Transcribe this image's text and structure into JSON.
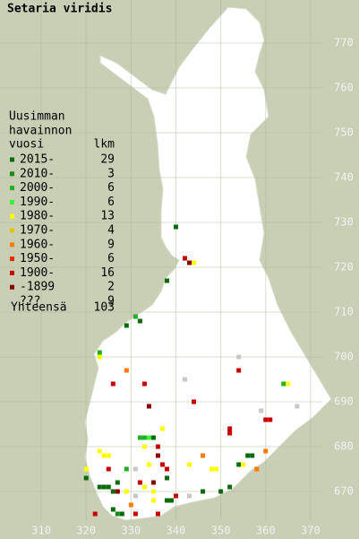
{
  "chart_data": {
    "type": "map",
    "title": "Setaria viridis",
    "legend_heading": [
      "Uusimman",
      "havainnon",
      "vuosi"
    ],
    "count_heading": "lkm",
    "legend": [
      {
        "name": "2015-",
        "count": 29,
        "color": "#0b6b0b"
      },
      {
        "name": "2010-",
        "count": 3,
        "color": "#198a19"
      },
      {
        "name": "2000-",
        "count": 6,
        "color": "#22b022"
      },
      {
        "name": "1990-",
        "count": 6,
        "color": "#3cee3c"
      },
      {
        "name": "1980-",
        "count": 13,
        "color": "#ffff00"
      },
      {
        "name": "1970-",
        "count": 4,
        "color": "#e8c000"
      },
      {
        "name": "1960-",
        "count": 9,
        "color": "#ff7a00"
      },
      {
        "name": "1950-",
        "count": 6,
        "color": "#ee2a00"
      },
      {
        "name": "1900-",
        "count": 16,
        "color": "#c80000"
      },
      {
        "name": "-1899",
        "count": 2,
        "color": "#880000"
      },
      {
        "name": "???",
        "count": 9,
        "color": "#c8c8c8"
      }
    ],
    "total": {
      "label": "Yhteensä",
      "value": 103
    },
    "xlim": [
      300.8,
      380.8
    ],
    "ylim": [
      659.4,
      779.6
    ],
    "xticks": [
      310,
      320,
      330,
      340,
      350,
      360,
      370
    ],
    "yticks": [
      670,
      680,
      690,
      700,
      710,
      720,
      730,
      740,
      750,
      760,
      770
    ],
    "grid": true,
    "points": [
      [
        340,
        729,
        0
      ],
      [
        342,
        722,
        8
      ],
      [
        344,
        721,
        4
      ],
      [
        343,
        721,
        9
      ],
      [
        338,
        717,
        0
      ],
      [
        331,
        709,
        2
      ],
      [
        332,
        708,
        0
      ],
      [
        329,
        707,
        0
      ],
      [
        323,
        701,
        2
      ],
      [
        323,
        700,
        4
      ],
      [
        354,
        700,
        10
      ],
      [
        354,
        697,
        8
      ],
      [
        329,
        697,
        6
      ],
      [
        342,
        695,
        10
      ],
      [
        326,
        694,
        8
      ],
      [
        333,
        694,
        8
      ],
      [
        364,
        694,
        2
      ],
      [
        365,
        694,
        4
      ],
      [
        334,
        689,
        9
      ],
      [
        344,
        690,
        8
      ],
      [
        359,
        688,
        10
      ],
      [
        367,
        689,
        10
      ],
      [
        360,
        686,
        8
      ],
      [
        361,
        686,
        8
      ],
      [
        337,
        684,
        4
      ],
      [
        352,
        684,
        8
      ],
      [
        352,
        683,
        8
      ],
      [
        332,
        682,
        2
      ],
      [
        333,
        682,
        2
      ],
      [
        334,
        682,
        3
      ],
      [
        335,
        682,
        0
      ],
      [
        336,
        680,
        8
      ],
      [
        333,
        680,
        4
      ],
      [
        323,
        679,
        4
      ],
      [
        324,
        678,
        4
      ],
      [
        325,
        678,
        4
      ],
      [
        336,
        678,
        9
      ],
      [
        346,
        678,
        6
      ],
      [
        356,
        678,
        0
      ],
      [
        357,
        678,
        0
      ],
      [
        360,
        679,
        6
      ],
      [
        320,
        675,
        4
      ],
      [
        325,
        675,
        8
      ],
      [
        329,
        675,
        2
      ],
      [
        331,
        675,
        10
      ],
      [
        334,
        676,
        4
      ],
      [
        337,
        676,
        8
      ],
      [
        338,
        675,
        8
      ],
      [
        343,
        676,
        4
      ],
      [
        348,
        675,
        4
      ],
      [
        349,
        675,
        4
      ],
      [
        354,
        676,
        0
      ],
      [
        355,
        676,
        4
      ],
      [
        358,
        675,
        6
      ],
      [
        320,
        673,
        0
      ],
      [
        327,
        672,
        0
      ],
      [
        332,
        672,
        8
      ],
      [
        335,
        672,
        9
      ],
      [
        338,
        673,
        0
      ],
      [
        352,
        671,
        0
      ],
      [
        323,
        671,
        0
      ],
      [
        324,
        671,
        0
      ],
      [
        325,
        671,
        0
      ],
      [
        326,
        670,
        0
      ],
      [
        327,
        670,
        9
      ],
      [
        329,
        670,
        4
      ],
      [
        333,
        671,
        4
      ],
      [
        335,
        670,
        4
      ],
      [
        340,
        669,
        8
      ],
      [
        343,
        669,
        10
      ],
      [
        346,
        670,
        0
      ],
      [
        350,
        670,
        0
      ],
      [
        331,
        669,
        10
      ],
      [
        338,
        668,
        0
      ],
      [
        339,
        668,
        0
      ],
      [
        335,
        668,
        4
      ],
      [
        330,
        667,
        6
      ],
      [
        326,
        666,
        0
      ],
      [
        328,
        665,
        0
      ],
      [
        327,
        665,
        1
      ],
      [
        331,
        665,
        8
      ],
      [
        336,
        665,
        8
      ],
      [
        322,
        665,
        8
      ]
    ]
  }
}
